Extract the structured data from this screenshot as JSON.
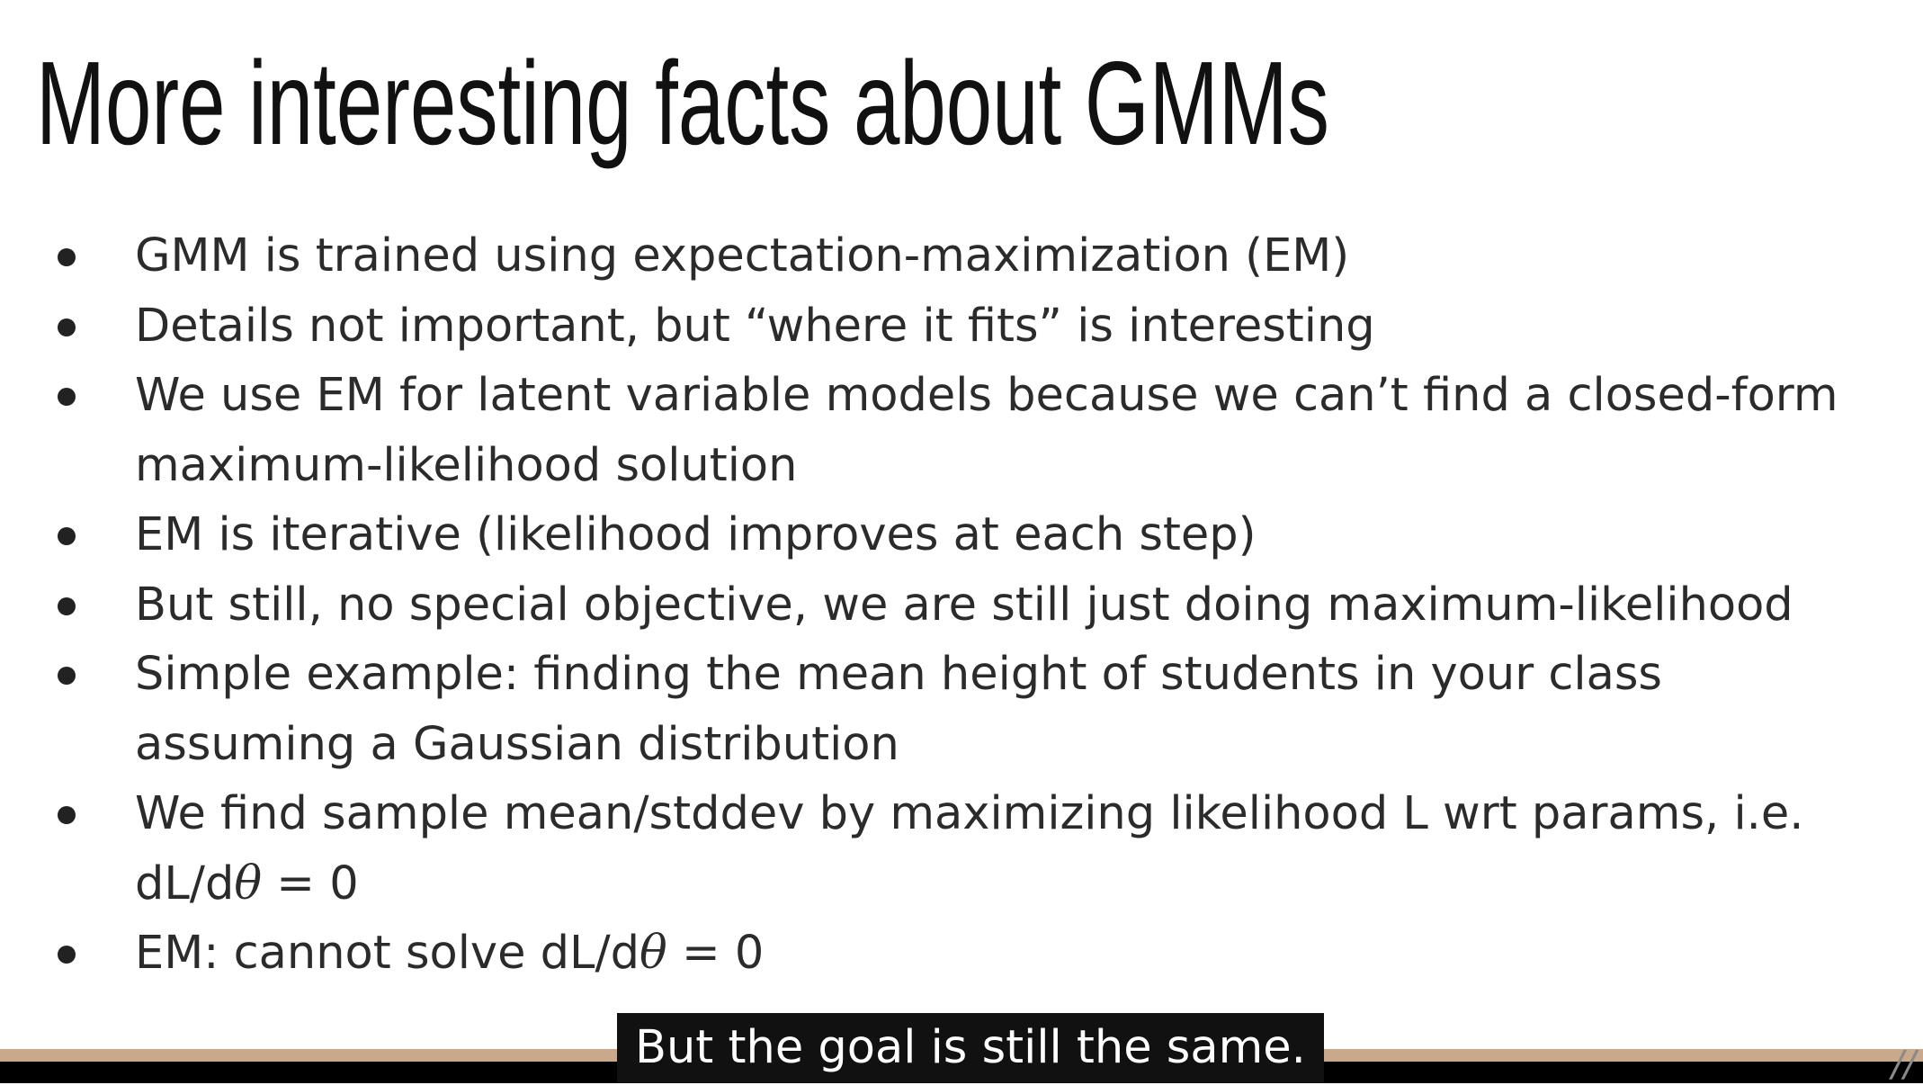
{
  "slide": {
    "title": "More interesting facts about GMMs",
    "bullets": [
      {
        "lines": [
          {
            "text": "GMM is trained using expectation-maximization (EM)"
          }
        ]
      },
      {
        "lines": [
          {
            "text": "Details not important, but “where it fits” is interesting"
          }
        ]
      },
      {
        "lines": [
          {
            "text": "We use EM for latent variable models because we can’t find a closed-form"
          },
          {
            "text": "maximum-likelihood solution"
          }
        ]
      },
      {
        "lines": [
          {
            "text": "EM is iterative (likelihood improves at each step)"
          }
        ]
      },
      {
        "lines": [
          {
            "text": "But still, no special objective, we are still just doing maximum-likelihood"
          }
        ]
      },
      {
        "lines": [
          {
            "text": "Simple example: finding the mean height of students in your class"
          },
          {
            "text": "assuming a Gaussian distribution"
          }
        ]
      },
      {
        "lines": [
          {
            "text": "We find sample mean/stddev by maximizing likelihood L wrt params, i.e."
          },
          {
            "pre": "dL/d",
            "theta": "θ",
            "post": " = 0"
          }
        ]
      },
      {
        "lines": [
          {
            "pre": "EM: cannot solve dL/d",
            "theta": "θ",
            "post": " = 0"
          }
        ]
      }
    ]
  },
  "caption": {
    "text": "But the goal is still the same."
  },
  "colors": {
    "background": "#ffffff",
    "text": "#2b2b2b",
    "stripe": "#c9a98a",
    "band": "#000000",
    "caption_bg": "#111111"
  }
}
